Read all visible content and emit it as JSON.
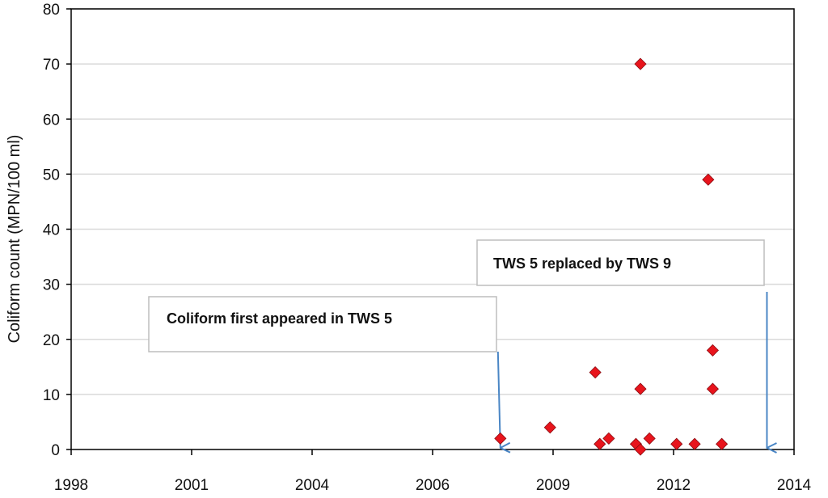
{
  "chart_data": {
    "type": "scatter",
    "title": "",
    "xlabel": "",
    "ylabel": "Coliform count (MPN/100 ml)",
    "xlim": [
      1998,
      2014
    ],
    "ylim": [
      0,
      80
    ],
    "xticks": [
      "1998",
      "2001",
      "2004",
      "2006",
      "2009",
      "2012",
      "2014"
    ],
    "yticks": [
      "0",
      "10",
      "20",
      "30",
      "40",
      "50",
      "60",
      "70",
      "80"
    ],
    "grid": "horizontal",
    "legend": "none",
    "marker": "diamond",
    "marker_color": "#e8141c",
    "grid_color": "#d9d9d9",
    "arrow_color": "#4a86c5",
    "series": [
      {
        "points": [
          {
            "x": 2007.5,
            "y": 2
          },
          {
            "x": 2008.6,
            "y": 4
          },
          {
            "x": 2009.6,
            "y": 14
          },
          {
            "x": 2009.7,
            "y": 1
          },
          {
            "x": 2009.9,
            "y": 2
          },
          {
            "x": 2010.5,
            "y": 1
          },
          {
            "x": 2010.6,
            "y": 0
          },
          {
            "x": 2010.6,
            "y": 70
          },
          {
            "x": 2010.6,
            "y": 11
          },
          {
            "x": 2010.8,
            "y": 2
          },
          {
            "x": 2011.4,
            "y": 1
          },
          {
            "x": 2011.8,
            "y": 1
          },
          {
            "x": 2012.1,
            "y": 49
          },
          {
            "x": 2012.2,
            "y": 18
          },
          {
            "x": 2012.2,
            "y": 11
          },
          {
            "x": 2012.4,
            "y": 1
          }
        ]
      }
    ],
    "annotations": [
      {
        "text": "Coliform  first appeared  in  TWS 5",
        "arrow_x": 2007.5
      },
      {
        "text": "TWS 5 replaced   by TWS 9",
        "arrow_x": 2013.4
      }
    ]
  }
}
